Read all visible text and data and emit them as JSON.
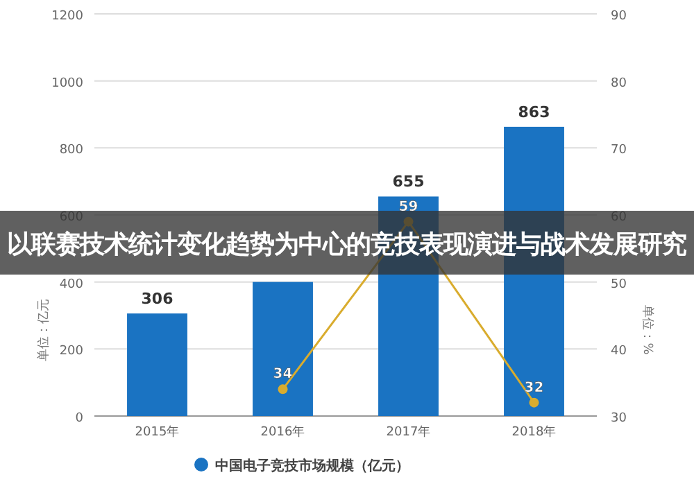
{
  "chart_data": {
    "type": "bar",
    "title": "以联赛技术统计变化趋势为中心的竞技表现演进与战术发展研究",
    "categories": [
      "2015年",
      "2016年",
      "2017年",
      "2018年"
    ],
    "series": [
      {
        "name": "中国电子竞技市场规模（亿元）",
        "color": "#1a73c2",
        "values": [
          306,
          400,
          655,
          863
        ],
        "value_labels": [
          "306",
          null,
          "655",
          "863"
        ]
      },
      {
        "type": "line",
        "axis": "y2",
        "color": "#d9ac2e",
        "marker": "circle",
        "values": [
          null,
          34,
          59,
          32
        ],
        "value_labels": [
          null,
          "34",
          "59",
          "32"
        ]
      }
    ],
    "ylabel": "单位：亿元",
    "y2label": "单位：%",
    "ylim": [
      0,
      1200
    ],
    "yticks": [
      0,
      200,
      400,
      600,
      800,
      1000,
      1200
    ],
    "y2lim": [
      30,
      90
    ],
    "y2ticks": [
      30,
      40,
      50,
      60,
      70,
      80,
      90
    ],
    "grid": "y",
    "legend": "bottom"
  }
}
